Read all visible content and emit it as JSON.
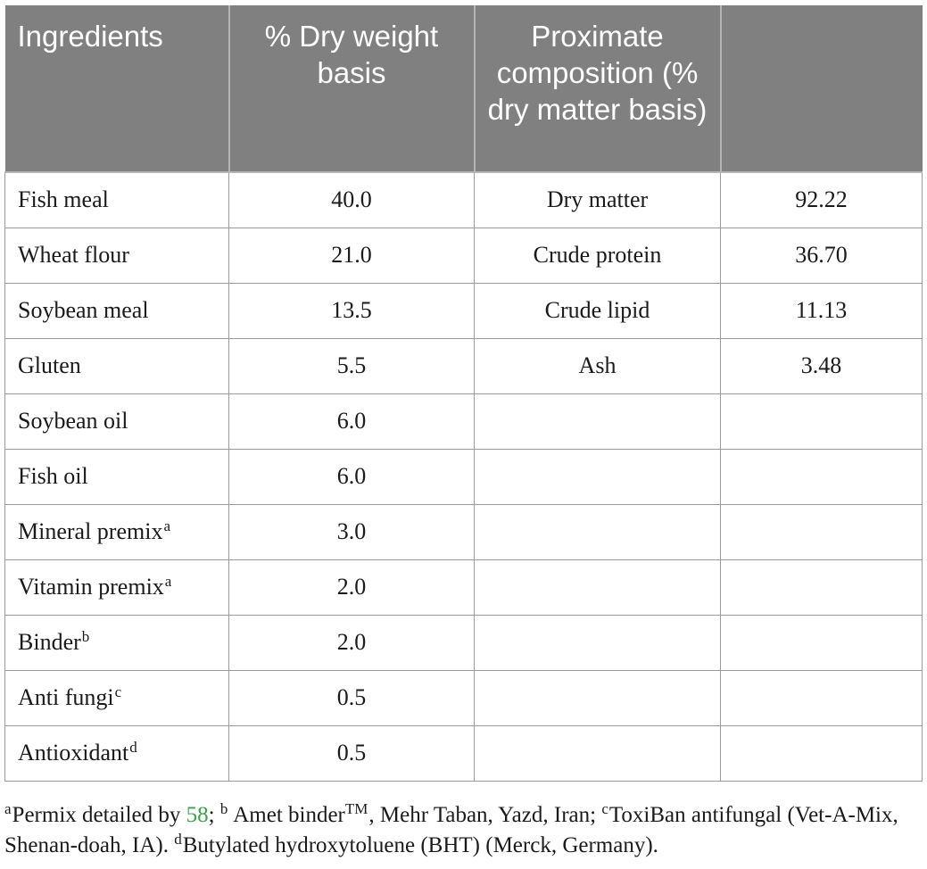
{
  "table": {
    "headers": {
      "col1": "Ingredients",
      "col2": "% Dry weight basis",
      "col3": "Proximate composition (% dry matter basis)",
      "col4": ""
    },
    "rows": [
      {
        "ingredient": "Fish meal",
        "sup": "",
        "percent": "40.0",
        "component": "Dry matter",
        "value": "92.22"
      },
      {
        "ingredient": "Wheat flour",
        "sup": "",
        "percent": "21.0",
        "component": "Crude protein",
        "value": "36.70"
      },
      {
        "ingredient": "Soybean meal",
        "sup": "",
        "percent": "13.5",
        "component": "Crude lipid",
        "value": "11.13"
      },
      {
        "ingredient": "Gluten",
        "sup": "",
        "percent": "5.5",
        "component": "Ash",
        "value": "3.48"
      },
      {
        "ingredient": "Soybean oil",
        "sup": "",
        "percent": "6.0",
        "component": "",
        "value": ""
      },
      {
        "ingredient": "Fish oil",
        "sup": "",
        "percent": "6.0",
        "component": "",
        "value": ""
      },
      {
        "ingredient": "Mineral premix",
        "sup": "a",
        "percent": "3.0",
        "component": "",
        "value": ""
      },
      {
        "ingredient": "Vitamin premix",
        "sup": "a",
        "percent": "2.0",
        "component": "",
        "value": ""
      },
      {
        "ingredient": "Binder",
        "sup": "b",
        "percent": "2.0",
        "component": "",
        "value": ""
      },
      {
        "ingredient": "Anti fungi",
        "sup": "c",
        "percent": "0.5",
        "component": "",
        "value": ""
      },
      {
        "ingredient": "Antioxidant",
        "sup": "d",
        "percent": "0.5",
        "component": "",
        "value": ""
      }
    ]
  },
  "footnote": {
    "sup_a": "a",
    "text_a": "Permix detailed by ",
    "ref": "58",
    "text_a_end": "; ",
    "sup_b": "b",
    "text_b": "Amet binder",
    "sup_tm": "TM",
    "text_b_end": ", Mehr Taban, Yazd, Iran; ",
    "sup_c": "c",
    "text_c": "ToxiBan antifungal (Vet-A-Mix, Shenan-doah, IA). ",
    "sup_d": "d",
    "text_d": "Butylated hydroxytoluene (BHT) (Merck, Germany)."
  },
  "colors": {
    "header_bg": "#808080",
    "header_text": "#ffffff",
    "link": "#3aa348",
    "border": "#9a9a9a"
  }
}
